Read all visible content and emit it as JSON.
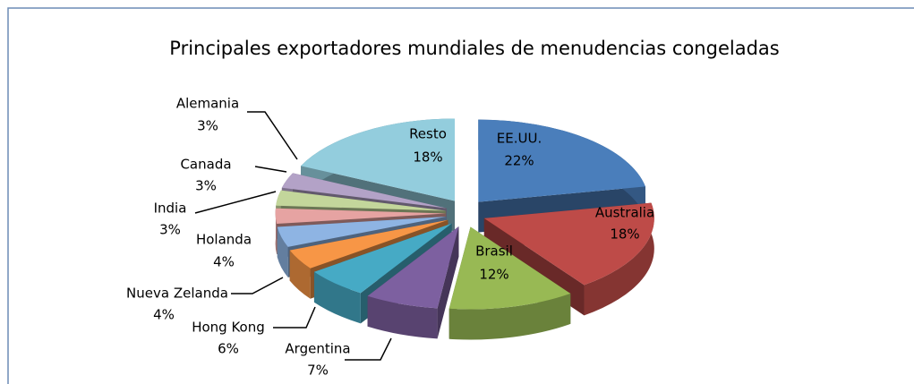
{
  "chart_data": {
    "type": "pie3d",
    "title": "Principales exportadores mundiales de menudencias congeladas",
    "categories": [
      "EE.UU.",
      "Australia",
      "Brasil",
      "Argentina",
      "Hong Kong",
      "Nueva Zelanda",
      "Holanda",
      "India",
      "Canada",
      "Alemania",
      "Resto"
    ],
    "values": [
      22,
      18,
      12,
      7,
      6,
      4,
      4,
      3,
      3,
      3,
      18
    ],
    "value_labels": [
      "22%",
      "18%",
      "12%",
      "7%",
      "6%",
      "4%",
      "4%",
      "3%",
      "3%",
      "3%",
      "18%"
    ],
    "colors": [
      "#4a7ebb",
      "#be4b48",
      "#98b954",
      "#7d60a0",
      "#46aac5",
      "#f79646",
      "#8eb4e3",
      "#e6a3a2",
      "#c3d69b",
      "#b3a2c7",
      "#93cddd"
    ]
  }
}
